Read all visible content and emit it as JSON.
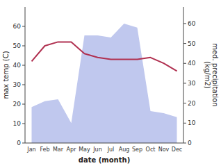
{
  "chart_data": {
    "type": "line",
    "categories": [
      "Jan",
      "Feb",
      "Mar",
      "Apr",
      "May",
      "Jun",
      "Jul",
      "Aug",
      "Sep",
      "Oct",
      "Nov",
      "Dec"
    ],
    "xlabel": "date (month)",
    "ylabel": "max temp (C)",
    "y2label": "med. precipitation\n(kg/m2)",
    "ylim": [
      0,
      70
    ],
    "yticks": [
      0,
      10,
      20,
      30,
      40,
      50,
      60
    ],
    "y2lim": [
      0,
      68.33
    ],
    "y2ticks": [
      0,
      10,
      20,
      30,
      40,
      50,
      60
    ],
    "series": [
      {
        "type": "area",
        "axis": "y2",
        "color": "#c0c8ee",
        "values": [
          18,
          21,
          22,
          10,
          54,
          54,
          53,
          60,
          58,
          16,
          15,
          13
        ]
      },
      {
        "type": "line",
        "color": "#b03050",
        "values": [
          42,
          50,
          52,
          52,
          46,
          44,
          43,
          43,
          43,
          44,
          41,
          37
        ]
      }
    ]
  }
}
